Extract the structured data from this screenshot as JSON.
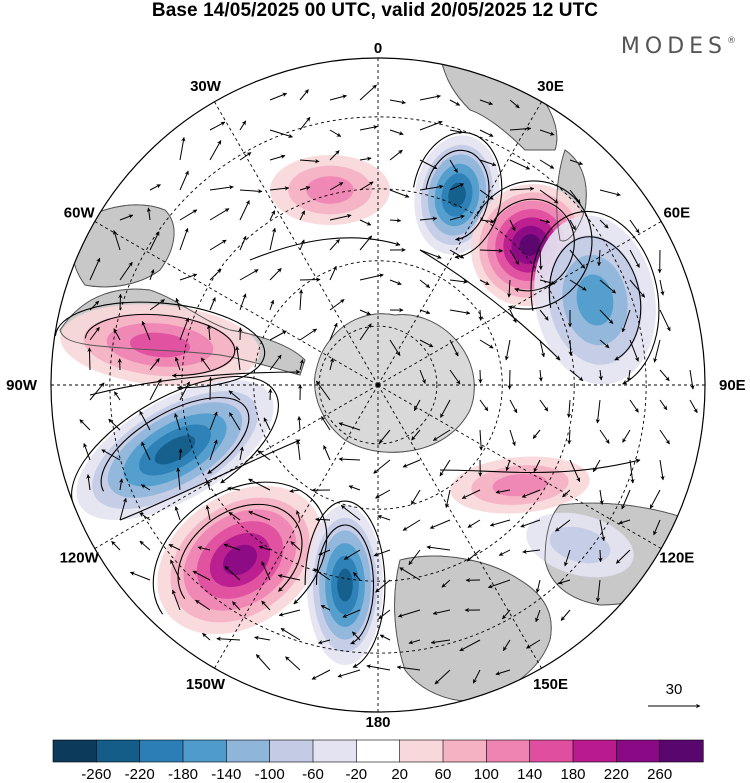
{
  "title": "Base 14/05/2025 00 UTC, valid 20/05/2025 12 UTC",
  "brand": "MODES",
  "brand_mark": "®",
  "meridian_labels": [
    "0",
    "30E",
    "60E",
    "90E",
    "120E",
    "150E",
    "180",
    "150W",
    "120W",
    "90W",
    "60W",
    "30W"
  ],
  "reference_vector": {
    "label": "30",
    "value": 30
  },
  "colorbar": {
    "levels": [
      "-260",
      "-220",
      "-180",
      "-140",
      "-100",
      "-60",
      "-20",
      "20",
      "60",
      "100",
      "140",
      "180",
      "220",
      "260"
    ],
    "colors": [
      "#0b3a5a",
      "#155d89",
      "#2b7fb6",
      "#4f9ccc",
      "#8fb5db",
      "#c3cbe5",
      "#e4e3f1",
      "#ffffff",
      "#f8d8db",
      "#f4b2c3",
      "#ee84b2",
      "#e04ea0",
      "#b91b8e",
      "#8a0a85",
      "#5a066f"
    ]
  },
  "colors": {
    "land": "#c8c8c8",
    "antarctica": "#d9d9d9",
    "coast": "#555555",
    "grid": "#000000"
  },
  "anomaly_features": [
    {
      "sign": "negative",
      "level": -220,
      "region": "0–30E mid-latitudes"
    },
    {
      "sign": "positive",
      "level": 260,
      "region": "40E–60E mid-latitudes"
    },
    {
      "sign": "negative",
      "level": -140,
      "region": "60E–90E"
    },
    {
      "sign": "positive",
      "level": 140,
      "region": "80W–90W"
    },
    {
      "sign": "negative",
      "level": -220,
      "region": "100W–120W"
    },
    {
      "sign": "positive",
      "level": 220,
      "region": "130W–150W"
    },
    {
      "sign": "negative",
      "level": -220,
      "region": "165W–180"
    },
    {
      "sign": "positive",
      "level": 100,
      "region": "20W"
    },
    {
      "sign": "positive",
      "level": 100,
      "region": "105E"
    },
    {
      "sign": "negative",
      "level": -60,
      "region": "120E"
    }
  ]
}
